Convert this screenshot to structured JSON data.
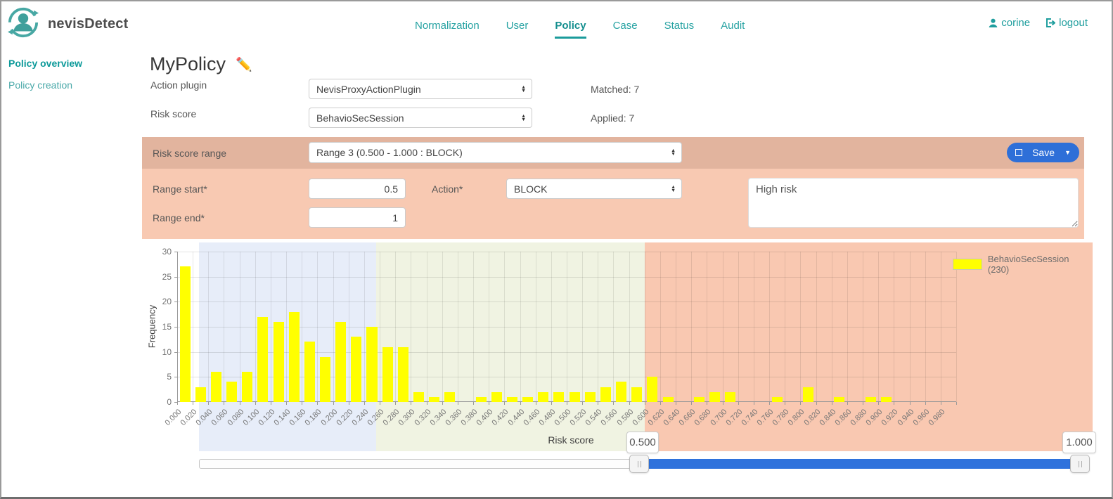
{
  "header": {
    "brand": "nevisDetect",
    "nav": [
      {
        "label": "Normalization",
        "active": false
      },
      {
        "label": "User",
        "active": false
      },
      {
        "label": "Policy",
        "active": true
      },
      {
        "label": "Case",
        "active": false
      },
      {
        "label": "Status",
        "active": false
      },
      {
        "label": "Audit",
        "active": false
      }
    ],
    "user_name": "corine",
    "logout_label": "logout"
  },
  "sidebar": {
    "items": [
      {
        "label": "Policy overview",
        "active": true
      },
      {
        "label": "Policy creation",
        "active": false
      }
    ]
  },
  "policy": {
    "title": "MyPolicy",
    "action_plugin_label": "Action plugin",
    "action_plugin_value": "NevisProxyActionPlugin",
    "matched": "Matched: 7",
    "risk_score_label": "Risk score",
    "risk_score_value": "BehavioSecSession",
    "applied": "Applied: 7"
  },
  "range_editor": {
    "range_select_label": "Risk score range",
    "range_select_value": "Range 3 (0.500 - 1.000 : BLOCK)",
    "save_label": "Save",
    "range_start_label": "Range start*",
    "range_start_value": "0.5",
    "action_label": "Action*",
    "action_value": "BLOCK",
    "range_end_label": "Range end*",
    "range_end_value": "1",
    "description_value": "High risk"
  },
  "slider": {
    "lower_label": "0.500",
    "upper_label": "1.000"
  },
  "chart_data": {
    "type": "bar",
    "title": "",
    "xlabel": "Risk score",
    "ylabel": "Frequency",
    "legend": "BehavioSecSession (230)",
    "legend_position": "top-right",
    "grid": true,
    "ylim": [
      0,
      30
    ],
    "yticks": [
      0,
      5,
      10,
      15,
      20,
      25,
      30
    ],
    "bar_color": "#ffff00",
    "categories": [
      "0.000",
      "0.020",
      "0.040",
      "0.060",
      "0.080",
      "0.100",
      "0.120",
      "0.140",
      "0.160",
      "0.180",
      "0.200",
      "0.220",
      "0.240",
      "0.260",
      "0.280",
      "0.300",
      "0.320",
      "0.340",
      "0.360",
      "0.380",
      "0.400",
      "0.420",
      "0.440",
      "0.460",
      "0.480",
      "0.500",
      "0.520",
      "0.540",
      "0.560",
      "0.580",
      "0.600",
      "0.620",
      "0.640",
      "0.660",
      "0.680",
      "0.700",
      "0.720",
      "0.740",
      "0.760",
      "0.780",
      "0.800",
      "0.820",
      "0.840",
      "0.860",
      "0.880",
      "0.900",
      "0.920",
      "0.940",
      "0.960",
      "0.980"
    ],
    "values": [
      27,
      3,
      6,
      4,
      6,
      17,
      16,
      18,
      12,
      9,
      16,
      13,
      15,
      11,
      11,
      2,
      1,
      2,
      0,
      1,
      2,
      1,
      1,
      2,
      2,
      2,
      2,
      3,
      4,
      3,
      5,
      1,
      0,
      1,
      2,
      2,
      0,
      0,
      1,
      0,
      3,
      0,
      1,
      0,
      1,
      1,
      0,
      0,
      0,
      0
    ],
    "total_count": 230,
    "regions": [
      {
        "from": 0.028,
        "to": 0.255,
        "color": "#e7edf9"
      },
      {
        "from": 0.255,
        "to": 0.6,
        "color": "#f0f3e2"
      },
      {
        "from": 0.6,
        "to": 1.18,
        "color": "#f9c8b1"
      }
    ]
  },
  "colors": {
    "accent_teal": "#1f9e9e",
    "save_button_blue": "#2e6fd8",
    "slider_blue": "#2f72dc",
    "form_block_dark": "#e2b49e",
    "form_block_light": "#f8c9b2",
    "bar_yellow": "#ffff00"
  }
}
